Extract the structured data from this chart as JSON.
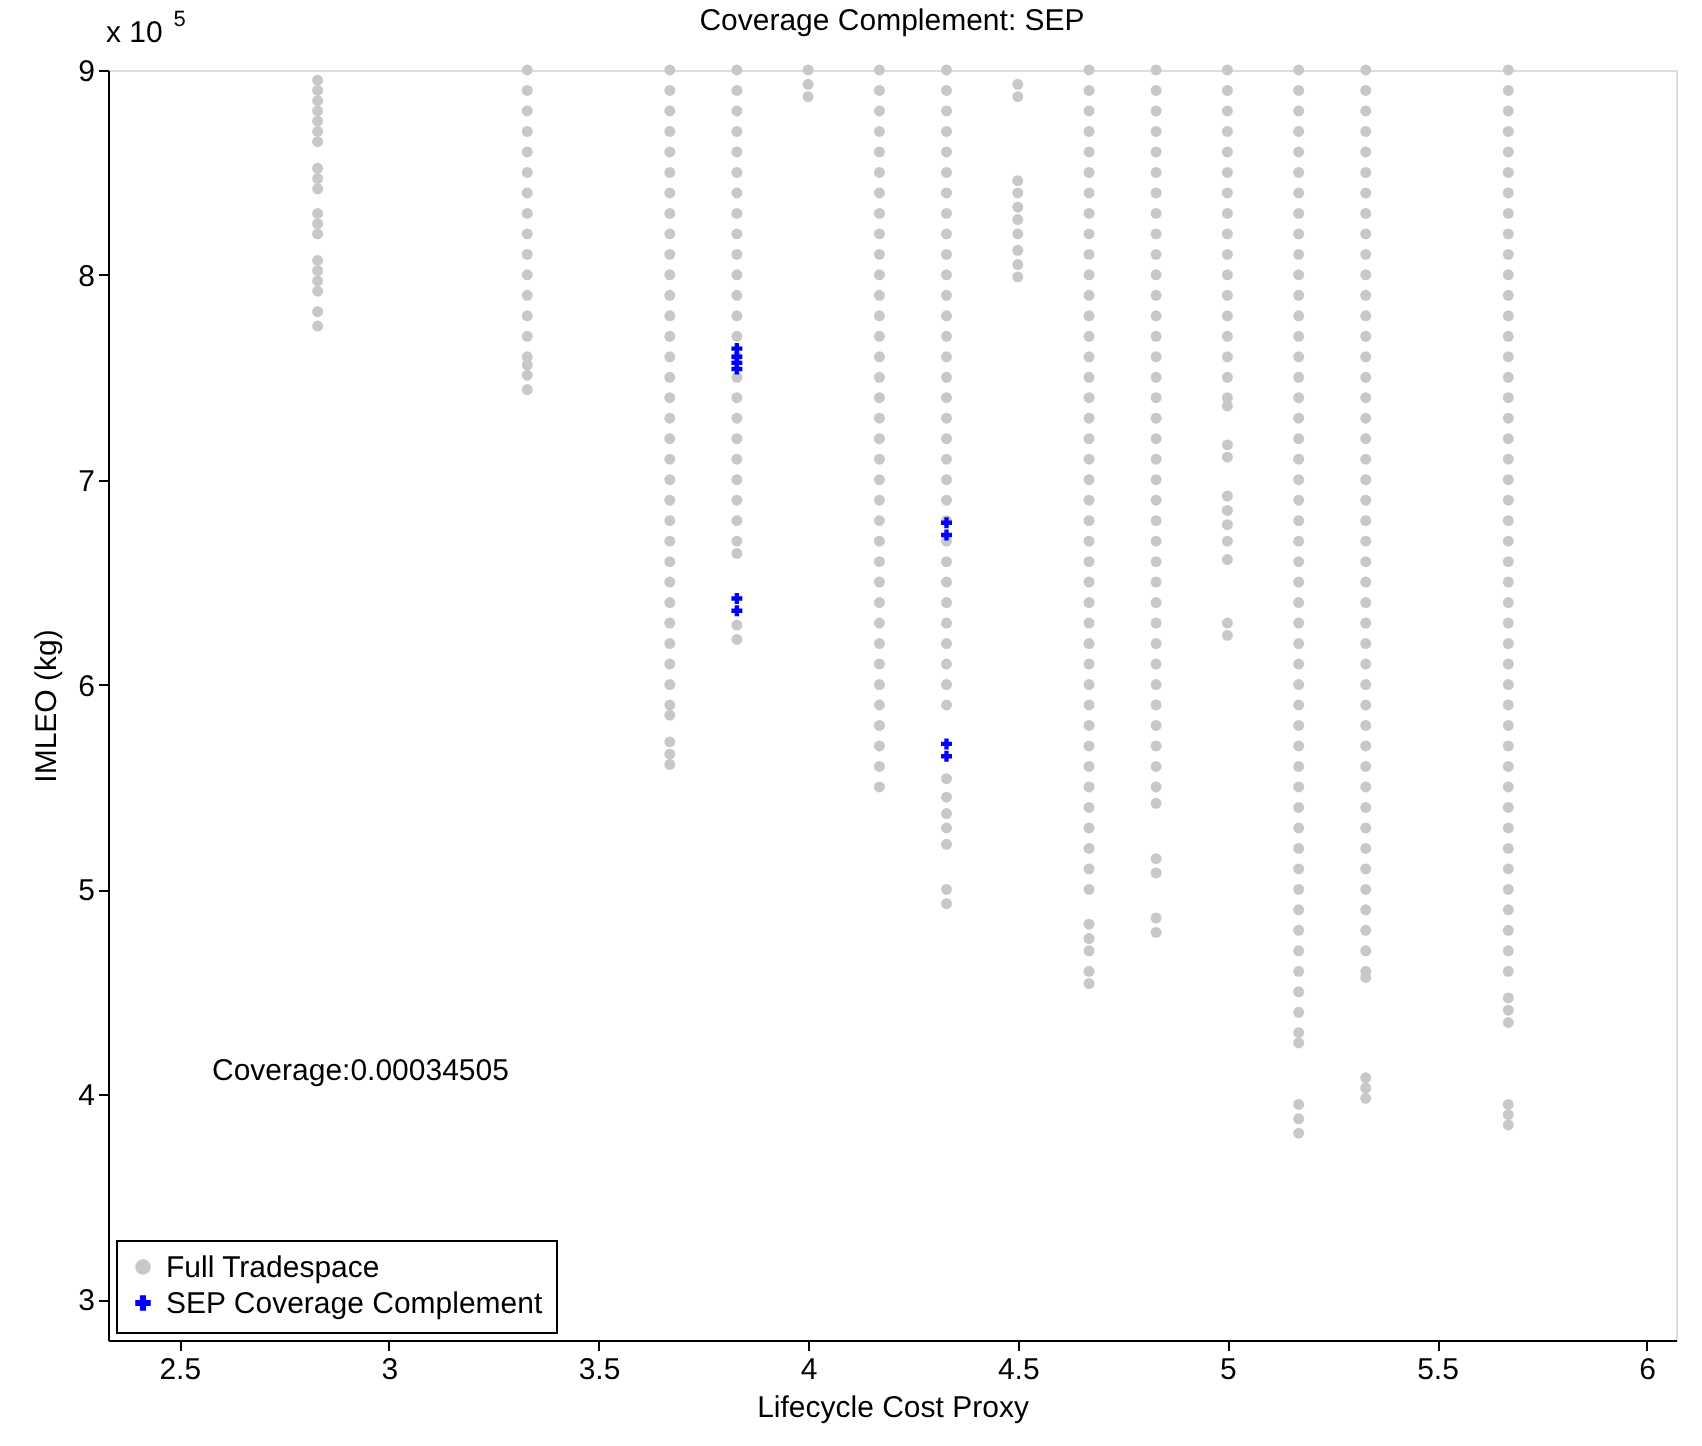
{
  "chart_data": {
    "type": "scatter",
    "title": "Coverage Complement: SEP",
    "xlabel": "Lifecycle Cost Proxy",
    "ylabel": "IMLEO (kg)",
    "annotations": [
      "x 10$^{5}$",
      "Coverage:0.00034505"
    ],
    "xlim": [
      2.33,
      6.07
    ],
    "xticks": [
      2.5,
      3,
      3.5,
      4,
      4.5,
      5,
      5.5,
      6
    ],
    "ylim": [
      2.8,
      9
    ],
    "yticks": [
      3,
      4,
      5,
      6,
      7,
      8,
      9
    ],
    "grid": false,
    "legend": "bottom left",
    "series": [
      {
        "name": "Full Tradespace",
        "color": "#c8c8c8",
        "marker": "circle",
        "x": [
          2.83,
          2.83,
          2.83,
          2.83,
          2.83,
          2.83,
          2.83,
          2.83,
          2.83,
          2.83,
          2.83,
          2.83,
          2.83,
          2.83,
          2.83,
          2.83,
          2.83,
          2.83,
          2.83,
          3.33,
          3.33,
          3.33,
          3.33,
          3.33,
          3.33,
          3.33,
          3.33,
          3.33,
          3.33,
          3.33,
          3.33,
          3.33,
          3.33,
          3.33,
          3.33,
          3.33,
          3.33,
          3.67,
          3.67,
          3.67,
          3.67,
          3.67,
          3.67,
          3.67,
          3.67,
          3.67,
          3.67,
          3.67,
          3.67,
          3.67,
          3.67,
          3.67,
          3.67,
          3.67,
          3.67,
          3.67,
          3.67,
          3.67,
          3.67,
          3.67,
          3.67,
          3.67,
          3.67,
          3.67,
          3.67,
          3.67,
          3.67,
          3.67,
          3.67,
          3.67,
          3.67,
          3.67,
          3.67,
          3.83,
          3.83,
          3.83,
          3.83,
          3.83,
          3.83,
          3.83,
          3.83,
          3.83,
          3.83,
          3.83,
          3.83,
          3.83,
          3.83,
          3.83,
          3.83,
          3.83,
          3.83,
          3.83,
          3.83,
          3.83,
          3.83,
          3.83,
          3.83,
          3.83,
          3.83,
          3.83,
          4.0,
          4.0,
          4.0,
          4.17,
          4.17,
          4.17,
          4.17,
          4.17,
          4.17,
          4.17,
          4.17,
          4.17,
          4.17,
          4.17,
          4.17,
          4.17,
          4.17,
          4.17,
          4.17,
          4.17,
          4.17,
          4.17,
          4.17,
          4.17,
          4.17,
          4.17,
          4.17,
          4.17,
          4.17,
          4.17,
          4.17,
          4.17,
          4.17,
          4.17,
          4.17,
          4.17,
          4.17,
          4.17,
          4.17,
          4.33,
          4.33,
          4.33,
          4.33,
          4.33,
          4.33,
          4.33,
          4.33,
          4.33,
          4.33,
          4.33,
          4.33,
          4.33,
          4.33,
          4.33,
          4.33,
          4.33,
          4.33,
          4.33,
          4.33,
          4.33,
          4.33,
          4.33,
          4.33,
          4.33,
          4.33,
          4.33,
          4.33,
          4.33,
          4.33,
          4.33,
          4.33,
          4.33,
          4.33,
          4.33,
          4.33,
          4.33,
          4.33,
          4.33,
          4.5,
          4.5,
          4.5,
          4.5,
          4.5,
          4.5,
          4.5,
          4.5,
          4.5,
          4.5,
          4.67,
          4.67,
          4.67,
          4.67,
          4.67,
          4.67,
          4.67,
          4.67,
          4.67,
          4.67,
          4.67,
          4.67,
          4.67,
          4.67,
          4.67,
          4.67,
          4.67,
          4.67,
          4.67,
          4.67,
          4.67,
          4.67,
          4.67,
          4.67,
          4.67,
          4.67,
          4.67,
          4.67,
          4.67,
          4.67,
          4.67,
          4.67,
          4.67,
          4.67,
          4.67,
          4.67,
          4.67,
          4.67,
          4.67,
          4.67,
          4.67,
          4.67,
          4.67,
          4.67,
          4.67,
          4.67,
          4.83,
          4.83,
          4.83,
          4.83,
          4.83,
          4.83,
          4.83,
          4.83,
          4.83,
          4.83,
          4.83,
          4.83,
          4.83,
          4.83,
          4.83,
          4.83,
          4.83,
          4.83,
          4.83,
          4.83,
          4.83,
          4.83,
          4.83,
          4.83,
          4.83,
          4.83,
          4.83,
          4.83,
          4.83,
          4.83,
          4.83,
          4.83,
          4.83,
          4.83,
          4.83,
          4.83,
          4.83,
          4.83,
          4.83,
          4.83,
          4.83,
          5.0,
          5.0,
          5.0,
          5.0,
          5.0,
          5.0,
          5.0,
          5.0,
          5.0,
          5.0,
          5.0,
          5.0,
          5.0,
          5.0,
          5.0,
          5.0,
          5.0,
          5.0,
          5.0,
          5.0,
          5.0,
          5.0,
          5.0,
          5.0,
          5.0,
          5.0,
          5.0,
          5.17,
          5.17,
          5.17,
          5.17,
          5.17,
          5.17,
          5.17,
          5.17,
          5.17,
          5.17,
          5.17,
          5.17,
          5.17,
          5.17,
          5.17,
          5.17,
          5.17,
          5.17,
          5.17,
          5.17,
          5.17,
          5.17,
          5.17,
          5.17,
          5.17,
          5.17,
          5.17,
          5.17,
          5.17,
          5.17,
          5.17,
          5.17,
          5.17,
          5.17,
          5.17,
          5.17,
          5.17,
          5.17,
          5.17,
          5.17,
          5.17,
          5.17,
          5.17,
          5.17,
          5.17,
          5.17,
          5.17,
          5.17,
          5.17,
          5.17,
          5.17,
          5.17,
          5.33,
          5.33,
          5.33,
          5.33,
          5.33,
          5.33,
          5.33,
          5.33,
          5.33,
          5.33,
          5.33,
          5.33,
          5.33,
          5.33,
          5.33,
          5.33,
          5.33,
          5.33,
          5.33,
          5.33,
          5.33,
          5.33,
          5.33,
          5.33,
          5.33,
          5.33,
          5.33,
          5.33,
          5.33,
          5.33,
          5.33,
          5.33,
          5.33,
          5.33,
          5.33,
          5.33,
          5.33,
          5.33,
          5.33,
          5.33,
          5.33,
          5.33,
          5.33,
          5.33,
          5.33,
          5.33,
          5.33,
          5.33,
          5.33,
          5.67,
          5.67,
          5.67,
          5.67,
          5.67,
          5.67,
          5.67,
          5.67,
          5.67,
          5.67,
          5.67,
          5.67,
          5.67,
          5.67,
          5.67,
          5.67,
          5.67,
          5.67,
          5.67,
          5.67,
          5.67,
          5.67,
          5.67,
          5.67,
          5.67,
          5.67,
          5.67,
          5.67,
          5.67,
          5.67,
          5.67,
          5.67,
          5.67,
          5.67,
          5.67,
          5.67,
          5.67,
          5.67,
          5.67,
          5.67,
          5.67,
          5.67,
          5.67,
          5.67,
          5.67,
          5.67,
          5.67,
          5.67,
          5.67,
          5.67,
          5.67
        ],
        "values": [
          8.95,
          8.9,
          8.85,
          8.8,
          8.75,
          8.7,
          8.65,
          8.52,
          8.47,
          8.42,
          8.3,
          8.25,
          8.2,
          8.07,
          8.02,
          7.97,
          7.92,
          7.82,
          7.75,
          9.0,
          8.9,
          8.8,
          8.7,
          8.6,
          8.5,
          8.4,
          8.3,
          8.2,
          8.1,
          8.0,
          7.9,
          7.8,
          7.7,
          7.6,
          7.56,
          7.51,
          7.44,
          9.0,
          8.9,
          8.8,
          8.7,
          8.6,
          8.5,
          8.4,
          8.3,
          8.2,
          8.1,
          8.0,
          7.9,
          7.8,
          7.7,
          7.6,
          7.5,
          7.4,
          7.3,
          7.2,
          7.1,
          7.0,
          6.9,
          6.8,
          6.7,
          6.6,
          6.5,
          6.4,
          6.3,
          6.2,
          6.1,
          6.0,
          5.9,
          5.85,
          5.72,
          5.66,
          5.61,
          9.0,
          8.9,
          8.8,
          8.7,
          8.6,
          8.5,
          8.4,
          8.3,
          8.2,
          8.1,
          8.0,
          7.9,
          7.8,
          7.7,
          7.6,
          7.5,
          7.4,
          7.3,
          7.2,
          7.1,
          7.0,
          6.9,
          6.8,
          6.7,
          6.64,
          6.29,
          6.22,
          9.0,
          8.93,
          8.87,
          9.0,
          8.9,
          8.8,
          8.7,
          8.6,
          8.5,
          8.4,
          8.3,
          8.2,
          8.1,
          8.0,
          7.9,
          7.8,
          7.7,
          7.6,
          7.5,
          7.4,
          7.3,
          7.2,
          7.1,
          7.0,
          6.9,
          6.8,
          6.7,
          6.6,
          6.5,
          6.4,
          6.3,
          6.2,
          6.1,
          6.0,
          5.9,
          5.8,
          5.7,
          5.6,
          5.5,
          9.0,
          8.9,
          8.8,
          8.7,
          8.6,
          8.5,
          8.4,
          8.3,
          8.2,
          8.1,
          8.0,
          7.9,
          7.8,
          7.7,
          7.6,
          7.5,
          7.4,
          7.3,
          7.2,
          7.1,
          7.0,
          6.9,
          6.8,
          6.7,
          6.6,
          6.5,
          6.4,
          6.3,
          6.2,
          6.1,
          6.0,
          5.9,
          5.54,
          5.45,
          5.37,
          5.3,
          5.22,
          5.0,
          4.93,
          8.93,
          8.87,
          8.46,
          8.4,
          8.33,
          8.27,
          8.2,
          8.12,
          8.05,
          7.99,
          9.0,
          8.9,
          8.8,
          8.7,
          8.6,
          8.5,
          8.4,
          8.3,
          8.2,
          8.1,
          8.0,
          7.9,
          7.8,
          7.7,
          7.6,
          7.5,
          7.4,
          7.3,
          7.2,
          7.1,
          7.0,
          6.9,
          6.8,
          6.7,
          6.6,
          6.5,
          6.4,
          6.3,
          6.2,
          6.1,
          6.0,
          5.9,
          5.8,
          5.7,
          5.6,
          5.5,
          5.4,
          5.3,
          5.2,
          5.1,
          5.0,
          4.83,
          4.76,
          4.7,
          4.6,
          4.54,
          9.0,
          8.9,
          8.8,
          8.7,
          8.6,
          8.5,
          8.4,
          8.3,
          8.2,
          8.1,
          8.0,
          7.9,
          7.8,
          7.7,
          7.6,
          7.5,
          7.4,
          7.3,
          7.2,
          7.1,
          7.0,
          6.9,
          6.8,
          6.7,
          6.6,
          6.5,
          6.4,
          6.3,
          6.2,
          6.1,
          6.0,
          5.9,
          5.8,
          5.7,
          5.6,
          5.5,
          5.42,
          5.15,
          5.08,
          4.86,
          4.79,
          9.0,
          8.9,
          8.8,
          8.7,
          8.6,
          8.5,
          8.4,
          8.3,
          8.2,
          8.1,
          8.0,
          7.9,
          7.8,
          7.7,
          7.6,
          7.5,
          7.4,
          7.36,
          7.17,
          7.11,
          6.92,
          6.85,
          6.78,
          6.7,
          6.61,
          6.3,
          6.24,
          9.0,
          8.9,
          8.8,
          8.7,
          8.6,
          8.5,
          8.4,
          8.3,
          8.2,
          8.1,
          8.0,
          7.9,
          7.8,
          7.7,
          7.6,
          7.5,
          7.4,
          7.3,
          7.2,
          7.1,
          7.0,
          6.9,
          6.8,
          6.7,
          6.6,
          6.5,
          6.4,
          6.3,
          6.2,
          6.1,
          6.0,
          5.9,
          5.8,
          5.7,
          5.6,
          5.5,
          5.4,
          5.3,
          5.2,
          5.1,
          5.0,
          4.9,
          4.8,
          4.7,
          4.6,
          4.5,
          4.4,
          4.3,
          4.25,
          3.95,
          3.88,
          3.81,
          9.0,
          8.9,
          8.8,
          8.7,
          8.6,
          8.5,
          8.4,
          8.3,
          8.2,
          8.1,
          8.0,
          7.9,
          7.8,
          7.7,
          7.6,
          7.5,
          7.4,
          7.3,
          7.2,
          7.1,
          7.0,
          6.9,
          6.8,
          6.7,
          6.6,
          6.5,
          6.4,
          6.3,
          6.2,
          6.1,
          6.0,
          5.9,
          5.8,
          5.7,
          5.6,
          5.5,
          5.4,
          5.3,
          5.2,
          5.1,
          5.0,
          4.9,
          4.8,
          4.7,
          4.6,
          4.57,
          4.08,
          4.03,
          3.98,
          9.0,
          8.9,
          8.8,
          8.7,
          8.6,
          8.5,
          8.4,
          8.3,
          8.2,
          8.1,
          8.0,
          7.9,
          7.8,
          7.7,
          7.6,
          7.5,
          7.4,
          7.3,
          7.2,
          7.1,
          7.0,
          6.9,
          6.8,
          6.7,
          6.6,
          6.5,
          6.4,
          6.3,
          6.2,
          6.1,
          6.0,
          5.9,
          5.8,
          5.7,
          5.6,
          5.5,
          5.4,
          5.3,
          5.2,
          5.1,
          5.0,
          4.9,
          4.8,
          4.7,
          4.6,
          4.47,
          4.41,
          4.35,
          3.95,
          3.9,
          3.85
        ]
      },
      {
        "name": "SEP Coverage Complement",
        "color": "#0000ff",
        "marker": "cross",
        "x": [
          3.83,
          3.83,
          3.83,
          3.83,
          3.83,
          3.83,
          4.33,
          4.33,
          4.33,
          4.33
        ],
        "values": [
          7.64,
          7.6,
          7.57,
          7.54,
          6.42,
          6.36,
          6.79,
          6.73,
          5.71,
          5.65
        ]
      }
    ]
  }
}
